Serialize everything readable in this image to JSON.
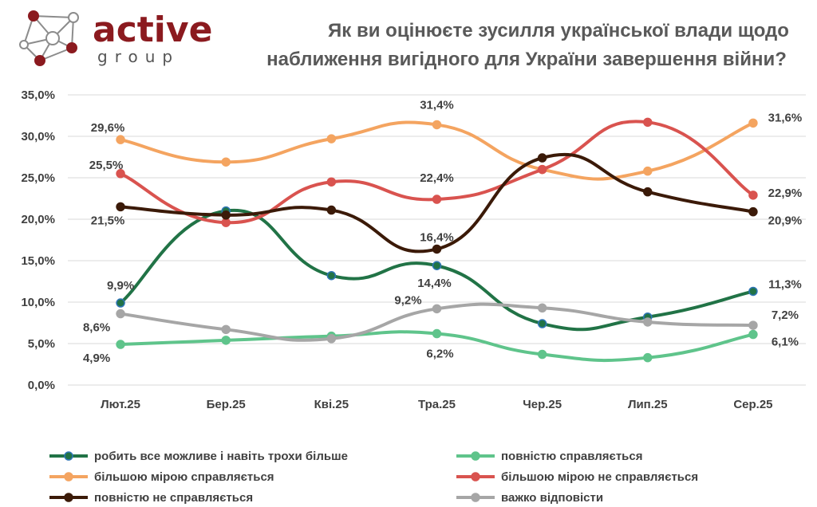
{
  "logo": {
    "word": "active",
    "sub": "group"
  },
  "colors": {
    "background": "#ffffff",
    "grid": "#d9d9d9",
    "text": "#404040",
    "brand": "#8b1a1f"
  },
  "chart_data": {
    "type": "line",
    "title": [
      "Як ви оцінюєте зусилля української влади щодо",
      "наближення вигідного для України завершення війни?"
    ],
    "categories": [
      "Лют.25",
      "Бер.25",
      "Кві.25",
      "Тра.25",
      "Чер.25",
      "Лип.25",
      "Сер.25"
    ],
    "ylim": [
      0,
      35
    ],
    "yticks": [
      "0,0%",
      "5,0%",
      "10,0%",
      "15,0%",
      "20,0%",
      "25,0%",
      "30,0%",
      "35,0%"
    ],
    "series": [
      {
        "name": "робить все можливе і навіть трохи більше",
        "color": "#217346",
        "marker_edge": "#2e75b6",
        "values": [
          9.9,
          21.0,
          13.2,
          14.4,
          7.4,
          8.2,
          11.3
        ]
      },
      {
        "name": "повністю справляється",
        "color": "#5fc48b",
        "values": [
          4.9,
          5.4,
          5.9,
          6.2,
          3.7,
          3.3,
          6.1
        ]
      },
      {
        "name": "більшою мірою справляється",
        "color": "#f4a460",
        "values": [
          29.6,
          26.9,
          29.7,
          31.4,
          26.0,
          25.8,
          31.6
        ]
      },
      {
        "name": "більшою мірою не справляється",
        "color": "#d9534f",
        "values": [
          25.5,
          19.6,
          24.5,
          22.4,
          26.0,
          31.7,
          22.9
        ]
      },
      {
        "name": "повністю не справляється",
        "color": "#3b1a08",
        "values": [
          21.5,
          20.5,
          21.1,
          16.4,
          27.4,
          23.3,
          20.9
        ]
      },
      {
        "name": "важко відповісти",
        "color": "#a6a6a6",
        "values": [
          8.6,
          6.7,
          5.6,
          9.2,
          9.3,
          7.6,
          7.2
        ]
      }
    ],
    "data_labels": [
      {
        "series": 0,
        "index": 0,
        "text": "9,9%"
      },
      {
        "series": 0,
        "index": 3,
        "text": "14,4%"
      },
      {
        "series": 0,
        "index": 6,
        "text": "11,3%"
      },
      {
        "series": 1,
        "index": 0,
        "text": "4,9%"
      },
      {
        "series": 1,
        "index": 3,
        "text": "6,2%"
      },
      {
        "series": 1,
        "index": 6,
        "text": "6,1%"
      },
      {
        "series": 2,
        "index": 0,
        "text": "29,6%"
      },
      {
        "series": 2,
        "index": 3,
        "text": "31,4%"
      },
      {
        "series": 2,
        "index": 6,
        "text": "31,6%"
      },
      {
        "series": 3,
        "index": 0,
        "text": "25,5%"
      },
      {
        "series": 3,
        "index": 3,
        "text": "22,4%"
      },
      {
        "series": 3,
        "index": 6,
        "text": "22,9%"
      },
      {
        "series": 4,
        "index": 0,
        "text": "21,5%"
      },
      {
        "series": 4,
        "index": 3,
        "text": "16,4%"
      },
      {
        "series": 4,
        "index": 6,
        "text": "20,9%"
      },
      {
        "series": 5,
        "index": 0,
        "text": "8,6%"
      },
      {
        "series": 5,
        "index": 3,
        "text": "9,2%"
      },
      {
        "series": 5,
        "index": 6,
        "text": "7,2%"
      }
    ],
    "legend_position": "bottom",
    "grid": true
  }
}
